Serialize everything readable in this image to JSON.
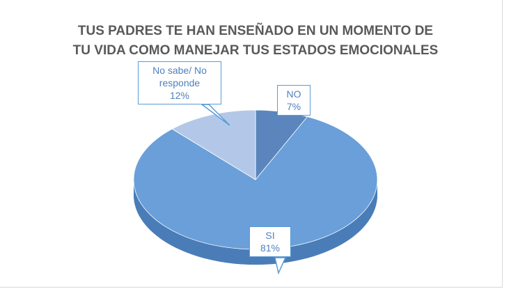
{
  "chart_data": {
    "type": "pie",
    "title": [
      "TUS PADRES TE HAN ENSEÑADO EN UN MOMENTO DE",
      "TU VIDA COMO MANEJAR TUS ESTADOS EMOCIONALES"
    ],
    "categories": [
      "NO",
      "SI",
      "No sabe/ No responde"
    ],
    "values": [
      7,
      81,
      12
    ],
    "value_labels": [
      "7%",
      "81%",
      "12%"
    ],
    "colors": [
      "#5b86bd",
      "#6a9fd9",
      "#b3c8e8"
    ]
  }
}
